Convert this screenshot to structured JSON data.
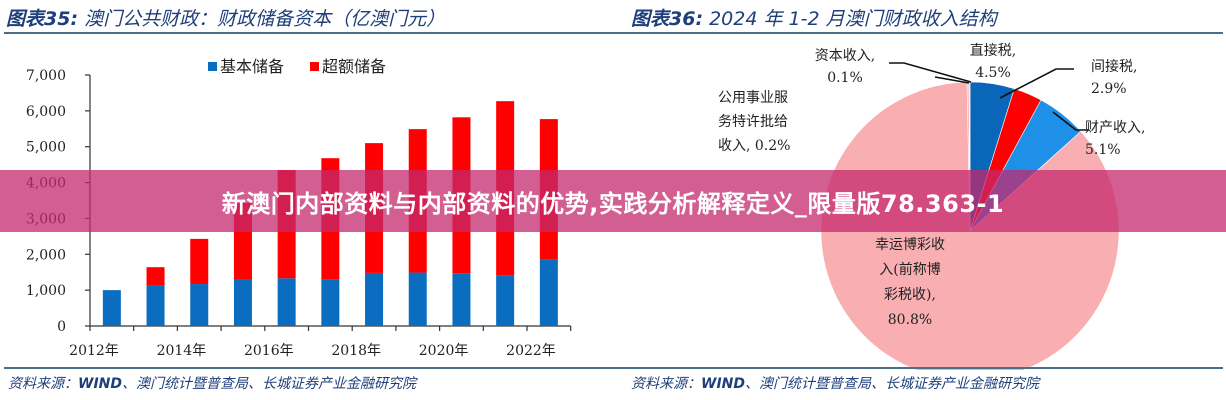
{
  "left": {
    "title_prefix": "图表35:",
    "title_text": "澳门公共财政：财政储备资本（亿澳门元）",
    "source_prefix": "资料来源：",
    "source_bold": "WIND",
    "source_rest": "、澳门统计暨普查局、长城证券产业金融研究院"
  },
  "right": {
    "title_prefix": "图表36:",
    "title_text": "2024 年 1-2 月澳门财政收入结构",
    "source_prefix": "资料来源：",
    "source_bold": "WIND",
    "source_rest": "、澳门统计暨普查局、长城证券产业金融研究院"
  },
  "banner": {
    "text": "新澳门内部资料与内部资料的优势,实践分析解释定义_限量版78.363-1"
  },
  "chart_data": [
    {
      "type": "bar",
      "stacked": true,
      "title": "澳门公共财政：财政储备资本（亿澳门元）",
      "categories": [
        "2012年",
        "2013年",
        "2014年",
        "2015年",
        "2016年",
        "2017年",
        "2018年",
        "2019年",
        "2020年",
        "2021年",
        "2022年"
      ],
      "x_tick_labels": [
        "2012年",
        "2014年",
        "2016年",
        "2018年",
        "2020年",
        "2022年"
      ],
      "series": [
        {
          "name": "基本储备",
          "color": "#0a6dbf",
          "values": [
            1000,
            1120,
            1170,
            1310,
            1330,
            1290,
            1480,
            1490,
            1470,
            1400,
            1850
          ]
        },
        {
          "name": "超额储备",
          "color": "#ff0000",
          "values": [
            0,
            520,
            1260,
            2120,
            3020,
            3390,
            3620,
            4000,
            4350,
            4870,
            3920
          ]
        }
      ],
      "y_ticks": [
        "0",
        "1,000",
        "2,000",
        "3,000",
        "4,000",
        "5,000",
        "6,000",
        "7,000"
      ],
      "ylim": [
        0,
        7000
      ],
      "legend_position": "top",
      "grid": false
    },
    {
      "type": "pie",
      "title": "2024 年 1-2 月澳门财政收入结构",
      "slices": [
        {
          "label": "直接税",
          "value": 4.5,
          "display": "4.5%",
          "color": "#0a66b8"
        },
        {
          "label": "间接税",
          "value": 2.9,
          "display": "2.9%",
          "color": "#ff0000"
        },
        {
          "label": "财产收入",
          "value": 5.1,
          "display": "5.1%",
          "color": "#1e90e8"
        },
        {
          "label": "幸运博彩收入(前称博彩税收)",
          "value": 80.8,
          "display": "80.8%",
          "color": "#f9aeb1"
        },
        {
          "label": "公用事业服务特许批给收入",
          "value": 0.2,
          "display": "0.2%",
          "color": "#f9aeb1"
        },
        {
          "label": "资本收入",
          "value": 0.1,
          "display": "0.1%",
          "color": "#f9aeb1"
        }
      ],
      "labels_text": {
        "direct": [
          "直接税,",
          "4.5%"
        ],
        "indirect": [
          "间接税,",
          "2.9%"
        ],
        "property": [
          "财产收入,",
          "5.1%"
        ],
        "gaming": [
          "幸运博彩收",
          "入(前称博",
          "彩税收),",
          "80.8%"
        ],
        "utility": [
          "公用事业服",
          "务特许批给",
          "收入, 0.2%"
        ],
        "capital": [
          "资本收入,",
          "0.1%"
        ]
      }
    }
  ]
}
